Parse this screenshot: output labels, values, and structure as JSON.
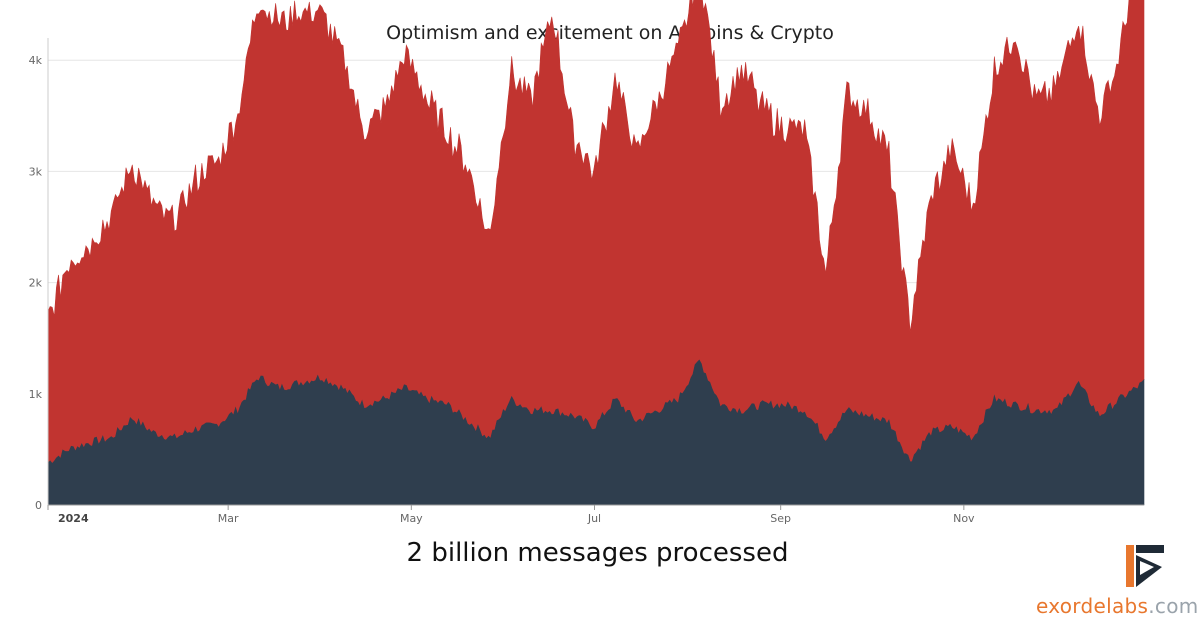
{
  "chart_data": {
    "type": "area",
    "title": "Optimism and excitement on Altcoins & Crypto",
    "ylim": [
      0,
      4200
    ],
    "yticks": [
      {
        "value": 0,
        "label": "0"
      },
      {
        "value": 1000,
        "label": "1k"
      },
      {
        "value": 2000,
        "label": "2k"
      },
      {
        "value": 3000,
        "label": "3k"
      },
      {
        "value": 4000,
        "label": "4k"
      }
    ],
    "xlim": [
      "2024-01-01",
      "2024-12-31"
    ],
    "xticks": [
      {
        "date": "2024-01-01",
        "label": "2024",
        "bold": true
      },
      {
        "date": "2024-03-01",
        "label": "Mar"
      },
      {
        "date": "2024-05-01",
        "label": "May"
      },
      {
        "date": "2024-07-01",
        "label": "Jul"
      },
      {
        "date": "2024-09-01",
        "label": "Sep"
      },
      {
        "date": "2024-11-01",
        "label": "Nov"
      }
    ],
    "stacked": true,
    "series": [
      {
        "color": "#2f3e4e",
        "points": [
          [
            "2024-01-01",
            380
          ],
          [
            "2024-01-08",
            500
          ],
          [
            "2024-01-15",
            560
          ],
          [
            "2024-01-22",
            600
          ],
          [
            "2024-01-29",
            780
          ],
          [
            "2024-02-05",
            650
          ],
          [
            "2024-02-12",
            600
          ],
          [
            "2024-02-19",
            680
          ],
          [
            "2024-02-26",
            720
          ],
          [
            "2024-03-04",
            850
          ],
          [
            "2024-03-11",
            1150
          ],
          [
            "2024-03-18",
            1050
          ],
          [
            "2024-03-25",
            1100
          ],
          [
            "2024-04-01",
            1150
          ],
          [
            "2024-04-08",
            1050
          ],
          [
            "2024-04-15",
            900
          ],
          [
            "2024-04-22",
            950
          ],
          [
            "2024-04-29",
            1050
          ],
          [
            "2024-05-06",
            950
          ],
          [
            "2024-05-13",
            900
          ],
          [
            "2024-05-20",
            750
          ],
          [
            "2024-05-27",
            600
          ],
          [
            "2024-06-03",
            950
          ],
          [
            "2024-06-10",
            850
          ],
          [
            "2024-06-17",
            850
          ],
          [
            "2024-06-24",
            800
          ],
          [
            "2024-07-01",
            700
          ],
          [
            "2024-07-08",
            950
          ],
          [
            "2024-07-15",
            750
          ],
          [
            "2024-07-22",
            850
          ],
          [
            "2024-07-29",
            950
          ],
          [
            "2024-08-05",
            1300
          ],
          [
            "2024-08-12",
            900
          ],
          [
            "2024-08-19",
            850
          ],
          [
            "2024-08-26",
            900
          ],
          [
            "2024-09-02",
            900
          ],
          [
            "2024-09-09",
            850
          ],
          [
            "2024-09-16",
            600
          ],
          [
            "2024-09-23",
            850
          ],
          [
            "2024-09-30",
            800
          ],
          [
            "2024-10-07",
            750
          ],
          [
            "2024-10-14",
            400
          ],
          [
            "2024-10-21",
            650
          ],
          [
            "2024-10-28",
            700
          ],
          [
            "2024-11-04",
            600
          ],
          [
            "2024-11-11",
            950
          ],
          [
            "2024-11-18",
            900
          ],
          [
            "2024-11-25",
            850
          ],
          [
            "2024-12-02",
            850
          ],
          [
            "2024-12-09",
            1100
          ],
          [
            "2024-12-16",
            800
          ],
          [
            "2024-12-23",
            950
          ],
          [
            "2024-12-31",
            1100
          ]
        ]
      },
      {
        "color": "#c13430",
        "points": [
          [
            "2024-01-01",
            1300
          ],
          [
            "2024-01-08",
            1700
          ],
          [
            "2024-01-15",
            1800
          ],
          [
            "2024-01-22",
            2000
          ],
          [
            "2024-01-29",
            2300
          ],
          [
            "2024-02-05",
            2050
          ],
          [
            "2024-02-12",
            1950
          ],
          [
            "2024-02-19",
            2250
          ],
          [
            "2024-02-26",
            2350
          ],
          [
            "2024-03-04",
            2650
          ],
          [
            "2024-03-11",
            3400
          ],
          [
            "2024-03-18",
            3300
          ],
          [
            "2024-03-25",
            3350
          ],
          [
            "2024-04-01",
            3300
          ],
          [
            "2024-04-08",
            3000
          ],
          [
            "2024-04-15",
            2500
          ],
          [
            "2024-04-22",
            2600
          ],
          [
            "2024-04-29",
            3000
          ],
          [
            "2024-05-06",
            2700
          ],
          [
            "2024-05-13",
            2450
          ],
          [
            "2024-05-20",
            2300
          ],
          [
            "2024-05-27",
            1800
          ],
          [
            "2024-06-03",
            2950
          ],
          [
            "2024-06-10",
            2800
          ],
          [
            "2024-06-17",
            3600
          ],
          [
            "2024-06-24",
            2500
          ],
          [
            "2024-07-01",
            2300
          ],
          [
            "2024-07-08",
            2900
          ],
          [
            "2024-07-15",
            2400
          ],
          [
            "2024-07-22",
            2800
          ],
          [
            "2024-07-29",
            3150
          ],
          [
            "2024-08-05",
            3550
          ],
          [
            "2024-08-12",
            2700
          ],
          [
            "2024-08-19",
            3100
          ],
          [
            "2024-08-26",
            2650
          ],
          [
            "2024-09-02",
            2500
          ],
          [
            "2024-09-09",
            2550
          ],
          [
            "2024-09-16",
            1500
          ],
          [
            "2024-09-23",
            2850
          ],
          [
            "2024-09-30",
            2750
          ],
          [
            "2024-10-07",
            2400
          ],
          [
            "2024-10-14",
            1250
          ],
          [
            "2024-10-21",
            2100
          ],
          [
            "2024-10-28",
            2500
          ],
          [
            "2024-11-04",
            2100
          ],
          [
            "2024-11-11",
            2950
          ],
          [
            "2024-11-18",
            3350
          ],
          [
            "2024-11-25",
            2800
          ],
          [
            "2024-12-02",
            2900
          ],
          [
            "2024-12-09",
            3300
          ],
          [
            "2024-12-16",
            2700
          ],
          [
            "2024-12-23",
            3100
          ],
          [
            "2024-12-31",
            4300
          ]
        ]
      }
    ]
  },
  "caption": "2 billion messages processed",
  "brand": {
    "part1": "exorde",
    "part2": "labs",
    "part3": ".com"
  }
}
